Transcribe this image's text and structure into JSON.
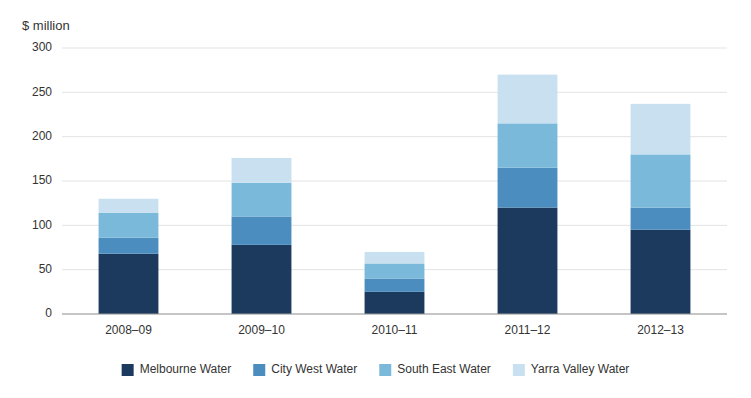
{
  "chart_data": {
    "type": "bar",
    "stacked": true,
    "ylabel": "$ million",
    "categories": [
      "2008–09",
      "2009–10",
      "2010–11",
      "2011–12",
      "2012–13"
    ],
    "series": [
      {
        "name": "Melbourne Water",
        "color": "#1b3a5e",
        "values": [
          68,
          78,
          25,
          120,
          95
        ]
      },
      {
        "name": "City West Water",
        "color": "#4b8dbf",
        "values": [
          18,
          32,
          15,
          45,
          25
        ]
      },
      {
        "name": "South East Water",
        "color": "#7ab9d9",
        "values": [
          28,
          38,
          17,
          50,
          60
        ]
      },
      {
        "name": "Yarra Valley Water",
        "color": "#c9e0f0",
        "values": [
          16,
          28,
          13,
          55,
          57
        ]
      }
    ],
    "ylim": [
      0,
      300
    ],
    "yticks": [
      0,
      50,
      100,
      150,
      200,
      250,
      300
    ],
    "grid": true,
    "legend": "bottom"
  }
}
